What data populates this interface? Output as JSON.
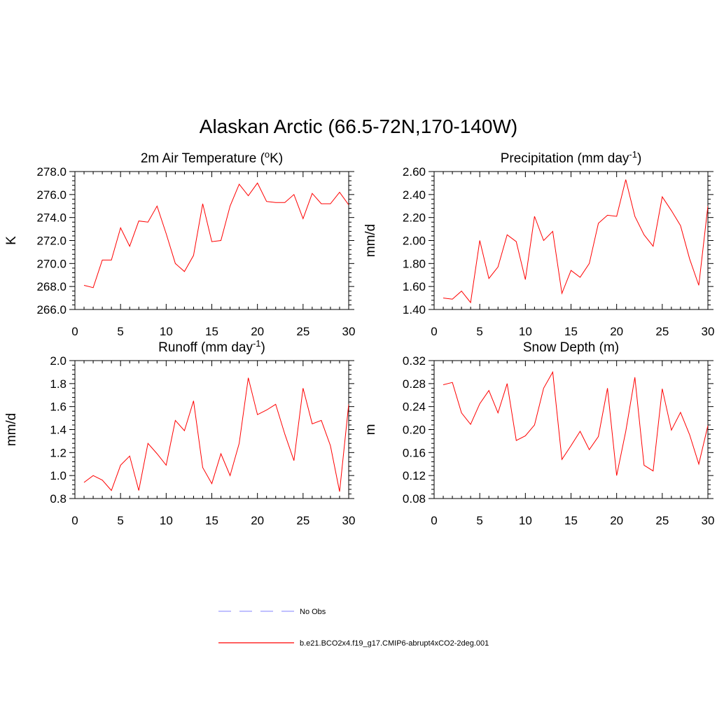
{
  "title": "Alaskan Arctic (66.5-72N,170-140W)",
  "colors": {
    "series": "#ff0000",
    "obs": "#9a9aff",
    "axis": "#000000"
  },
  "legend": {
    "obs_label": "No Obs",
    "model_label": "b.e21.BCO2x4.f19_g17.CMIP6-abrupt4xCO2-2deg.001"
  },
  "chart_data": [
    {
      "type": "line",
      "title": "2m Air Temperature (",
      "title_sup": "o",
      "title_after": "K)",
      "ylabel": "K",
      "xlim": [
        0,
        30
      ],
      "ylim": [
        266.0,
        278.0
      ],
      "xticks": [
        "0",
        "5",
        "10",
        "15",
        "20",
        "25",
        "30"
      ],
      "yticks": [
        "266.0",
        "268.0",
        "270.0",
        "272.0",
        "274.0",
        "276.0",
        "278.0"
      ],
      "x": [
        1,
        2,
        3,
        4,
        5,
        6,
        7,
        8,
        9,
        10,
        11,
        12,
        13,
        14,
        15,
        16,
        17,
        18,
        19,
        20,
        21,
        22,
        23,
        24,
        25,
        26,
        27,
        28,
        29,
        30
      ],
      "series": [
        {
          "values": [
            268.1,
            267.9,
            270.3,
            270.3,
            273.1,
            271.5,
            273.7,
            273.6,
            275.0,
            272.6,
            270.0,
            269.3,
            270.7,
            275.2,
            271.9,
            272.0,
            275.0,
            276.9,
            275.9,
            277.0,
            275.4,
            275.3,
            275.3,
            276.0,
            273.9,
            276.1,
            275.2,
            275.2,
            276.2,
            275.1
          ]
        }
      ]
    },
    {
      "type": "line",
      "title": "Precipitation (mm day",
      "title_sup": "-1",
      "title_after": ")",
      "ylabel": "mm/d",
      "xlim": [
        0,
        30
      ],
      "ylim": [
        1.4,
        2.6
      ],
      "xticks": [
        "0",
        "5",
        "10",
        "15",
        "20",
        "25",
        "30"
      ],
      "yticks": [
        "1.40",
        "1.60",
        "1.80",
        "2.00",
        "2.20",
        "2.40",
        "2.60"
      ],
      "x": [
        1,
        2,
        3,
        4,
        5,
        6,
        7,
        8,
        9,
        10,
        11,
        12,
        13,
        14,
        15,
        16,
        17,
        18,
        19,
        20,
        21,
        22,
        23,
        24,
        25,
        26,
        27,
        28,
        29,
        30
      ],
      "series": [
        {
          "values": [
            1.5,
            1.49,
            1.56,
            1.46,
            2.0,
            1.67,
            1.77,
            2.05,
            1.99,
            1.66,
            2.21,
            2.0,
            2.08,
            1.54,
            1.74,
            1.68,
            1.8,
            2.15,
            2.22,
            2.21,
            2.53,
            2.21,
            2.05,
            1.95,
            2.38,
            2.26,
            2.13,
            1.84,
            1.61,
            2.3
          ]
        }
      ]
    },
    {
      "type": "line",
      "title": "Runoff (mm day",
      "title_sup": "-1",
      "title_after": ")",
      "ylabel": "mm/d",
      "xlim": [
        0,
        30
      ],
      "ylim": [
        0.8,
        2.0
      ],
      "xticks": [
        "0",
        "5",
        "10",
        "15",
        "20",
        "25",
        "30"
      ],
      "yticks": [
        "0.8",
        "1.0",
        "1.2",
        "1.4",
        "1.6",
        "1.8",
        "2.0"
      ],
      "x": [
        1,
        2,
        3,
        4,
        5,
        6,
        7,
        8,
        9,
        10,
        11,
        12,
        13,
        14,
        15,
        16,
        17,
        18,
        19,
        20,
        21,
        22,
        23,
        24,
        25,
        26,
        27,
        28,
        29,
        30
      ],
      "series": [
        {
          "values": [
            0.94,
            1.0,
            0.96,
            0.87,
            1.09,
            1.17,
            0.87,
            1.28,
            1.19,
            1.09,
            1.48,
            1.39,
            1.65,
            1.07,
            0.93,
            1.19,
            1.0,
            1.28,
            1.85,
            1.53,
            1.57,
            1.62,
            1.36,
            1.13,
            1.76,
            1.45,
            1.48,
            1.26,
            0.86,
            1.62
          ]
        }
      ]
    },
    {
      "type": "line",
      "title": "Snow Depth (m)",
      "title_sup": "",
      "title_after": "",
      "ylabel": "m",
      "xlim": [
        0,
        30
      ],
      "ylim": [
        0.08,
        0.32
      ],
      "xticks": [
        "0",
        "5",
        "10",
        "15",
        "20",
        "25",
        "30"
      ],
      "yticks": [
        "0.08",
        "0.12",
        "0.16",
        "0.20",
        "0.24",
        "0.28",
        "0.32"
      ],
      "x": [
        1,
        2,
        3,
        4,
        5,
        6,
        7,
        8,
        9,
        10,
        11,
        12,
        13,
        14,
        15,
        16,
        17,
        18,
        19,
        20,
        21,
        22,
        23,
        24,
        25,
        26,
        27,
        28,
        29,
        30
      ],
      "series": [
        {
          "values": [
            0.278,
            0.282,
            0.229,
            0.209,
            0.245,
            0.268,
            0.229,
            0.28,
            0.181,
            0.189,
            0.208,
            0.272,
            0.3,
            0.148,
            0.172,
            0.197,
            0.165,
            0.188,
            0.272,
            0.12,
            0.197,
            0.291,
            0.138,
            0.128,
            0.271,
            0.199,
            0.23,
            0.191,
            0.14,
            0.207
          ]
        }
      ]
    }
  ]
}
